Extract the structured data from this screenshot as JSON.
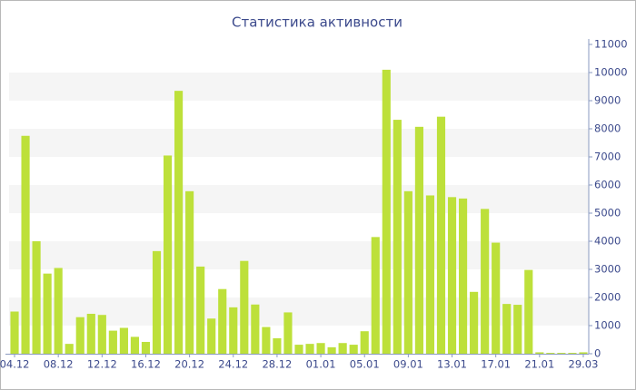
{
  "chart_data": {
    "type": "bar",
    "title": "Статистика активности",
    "categories": [
      "04.12",
      null,
      null,
      null,
      "08.12",
      null,
      null,
      null,
      "12.12",
      null,
      null,
      null,
      "16.12",
      null,
      null,
      null,
      "20.12",
      null,
      null,
      null,
      "24.12",
      null,
      null,
      null,
      "28.12",
      null,
      null,
      null,
      "01.01",
      null,
      null,
      null,
      "05.01",
      null,
      null,
      null,
      "09.01",
      null,
      null,
      null,
      "13.01",
      null,
      null,
      null,
      "17.01",
      null,
      null,
      null,
      "21.01",
      null,
      null,
      null,
      "29.03"
    ],
    "values": [
      1500,
      7750,
      4000,
      2850,
      3050,
      350,
      1300,
      1420,
      1380,
      820,
      920,
      600,
      420,
      3650,
      7050,
      9350,
      5780,
      3100,
      1250,
      2300,
      1650,
      3300,
      1750,
      950,
      550,
      1470,
      320,
      350,
      380,
      230,
      380,
      320,
      800,
      4150,
      10100,
      8320,
      5780,
      8070,
      5630,
      8430,
      5570,
      5520,
      2200,
      5150,
      3950,
      1770,
      1740,
      2980,
      50,
      30,
      30,
      30,
      50
    ],
    "color": "#bde03a",
    "ylim": [
      0,
      11000
    ],
    "yticks": [
      0,
      1000,
      2000,
      3000,
      4000,
      5000,
      6000,
      7000,
      8000,
      9000,
      10000,
      11000
    ],
    "grid": "bands",
    "y_axis_side": "right"
  }
}
